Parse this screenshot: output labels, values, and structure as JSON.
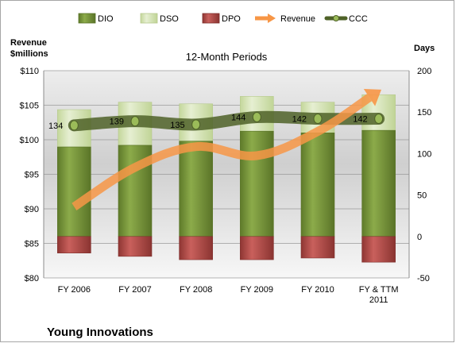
{
  "chart_data": {
    "type": "bar",
    "title": "12-Month Periods",
    "footer_title": "Young Innovations",
    "left_axis": {
      "label": [
        "Revenue",
        "$millions"
      ],
      "min": 80,
      "max": 110,
      "step": 5,
      "prefix": "$"
    },
    "right_axis": {
      "label": "Days",
      "min": -50,
      "max": 200,
      "step": 50
    },
    "categories": [
      [
        "FY 2006"
      ],
      [
        "FY 2007"
      ],
      [
        "FY 2008"
      ],
      [
        "FY 2009"
      ],
      [
        "FY 2010"
      ],
      [
        "FY & TTM",
        "2011"
      ]
    ],
    "series": [
      {
        "name": "DIO",
        "type": "bar",
        "axis": "right",
        "color": "#77933c",
        "values": [
          108,
          110,
          115,
          127,
          125,
          128
        ]
      },
      {
        "name": "DSO",
        "type": "bar",
        "axis": "right",
        "color": "#d7e4bd",
        "values": [
          45,
          52,
          45,
          42,
          37,
          43
        ]
      },
      {
        "name": "DPO",
        "type": "bar",
        "axis": "right",
        "color": "#c0504d",
        "values": [
          -20,
          -24,
          -28,
          -28,
          -26,
          -31
        ]
      },
      {
        "name": "Revenue",
        "type": "line",
        "axis": "left",
        "color": "#f79646",
        "values": [
          90.3,
          96.0,
          99.0,
          97.7,
          101.2,
          107.0
        ]
      },
      {
        "name": "CCC",
        "type": "line",
        "axis": "right",
        "color": "#4f6228",
        "values": [
          134,
          139,
          135,
          144,
          142,
          142
        ],
        "labels": [
          "134",
          "139",
          "135",
          "144",
          "142",
          "142"
        ]
      }
    ]
  }
}
